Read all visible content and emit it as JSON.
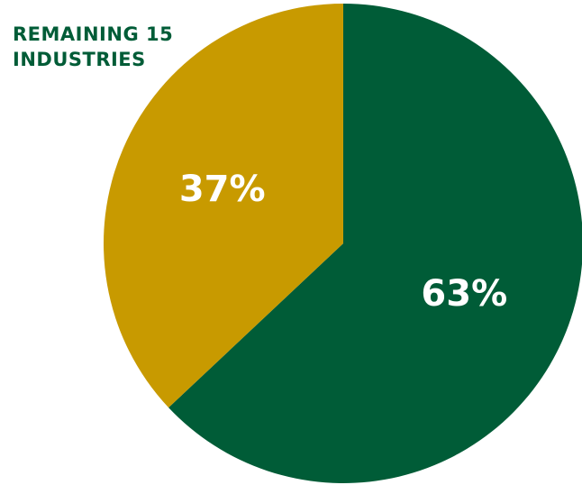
{
  "colors": {
    "primary_slice": "#005c37",
    "secondary_slice": "#c89a00",
    "label_text": "#ffffff",
    "annotation_text": "#005c37",
    "background": "#ffffff"
  },
  "annotation": {
    "line1": "REMAINING 15",
    "line2": "INDUSTRIES"
  },
  "chart_data": {
    "type": "pie",
    "title": "",
    "slices": [
      {
        "label": "",
        "value": 63,
        "display": "63%",
        "color": "#005c37"
      },
      {
        "label": "REMAINING 15 INDUSTRIES",
        "value": 37,
        "display": "37%",
        "color": "#c89a00"
      }
    ],
    "legend": "none",
    "start_angle_deg": 0,
    "direction": "clockwise"
  }
}
